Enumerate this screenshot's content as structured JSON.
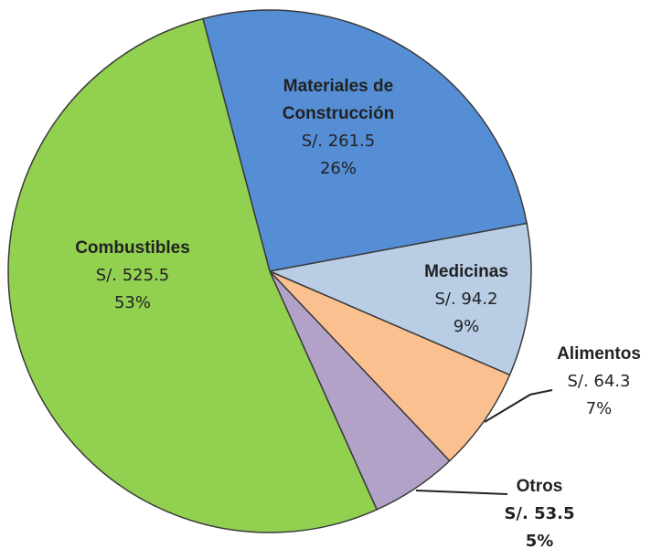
{
  "chart_data": {
    "type": "pie",
    "categories": [
      "Materiales de Construcción",
      "Medicinas",
      "Alimentos",
      "Otros",
      "Combustibles"
    ],
    "values": [
      261.5,
      94.2,
      64.3,
      53.5,
      525.5
    ],
    "value_labels": [
      "S/. 261.5",
      "S/. 94.2",
      "S/. 64.3",
      "S/. 53.5",
      "S/. 525.5"
    ],
    "percentages": [
      26,
      9,
      7,
      5,
      53
    ],
    "percentage_labels": [
      "26%",
      "9%",
      "7%",
      "5%",
      "53%"
    ],
    "colors": [
      "#558ed5",
      "#b9cde5",
      "#fac090",
      "#b3a2c7",
      "#92d050"
    ]
  }
}
